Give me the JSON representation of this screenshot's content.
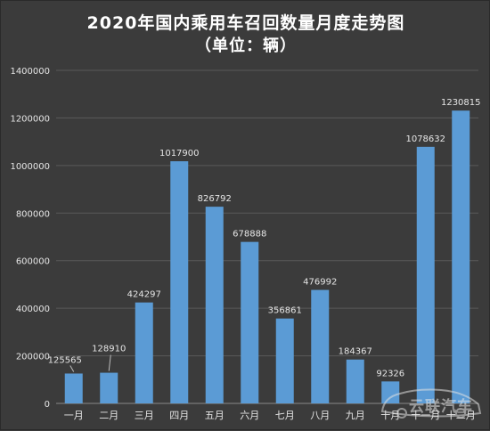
{
  "title_line1": "2020年国内乘用车召回数量月度走势图",
  "title_line2": "（单位：辆）",
  "watermark_text": "云联汽车",
  "colors": {
    "background": "#3b3b3b",
    "bar": "#5b9bd5",
    "grid": "#5a5a5a",
    "text": "#e6e6e6"
  },
  "chart_data": {
    "type": "bar",
    "title": "2020年国内乘用车召回数量月度走势图",
    "subtitle": "（单位：辆）",
    "xlabel": "",
    "ylabel": "",
    "categories": [
      "一月",
      "二月",
      "三月",
      "四月",
      "五月",
      "六月",
      "七月",
      "八月",
      "九月",
      "十月",
      "十一月",
      "十二月"
    ],
    "values": [
      125565,
      128910,
      424297,
      1017900,
      826792,
      678888,
      356861,
      476992,
      184367,
      92326,
      1078632,
      1230815
    ],
    "ylim": [
      0,
      1400000
    ],
    "yticks": [
      "0",
      "200000",
      "400000",
      "600000",
      "800000",
      "1000000",
      "1200000",
      "1400000"
    ],
    "grid": true,
    "legend": "none",
    "data_labels": true
  }
}
